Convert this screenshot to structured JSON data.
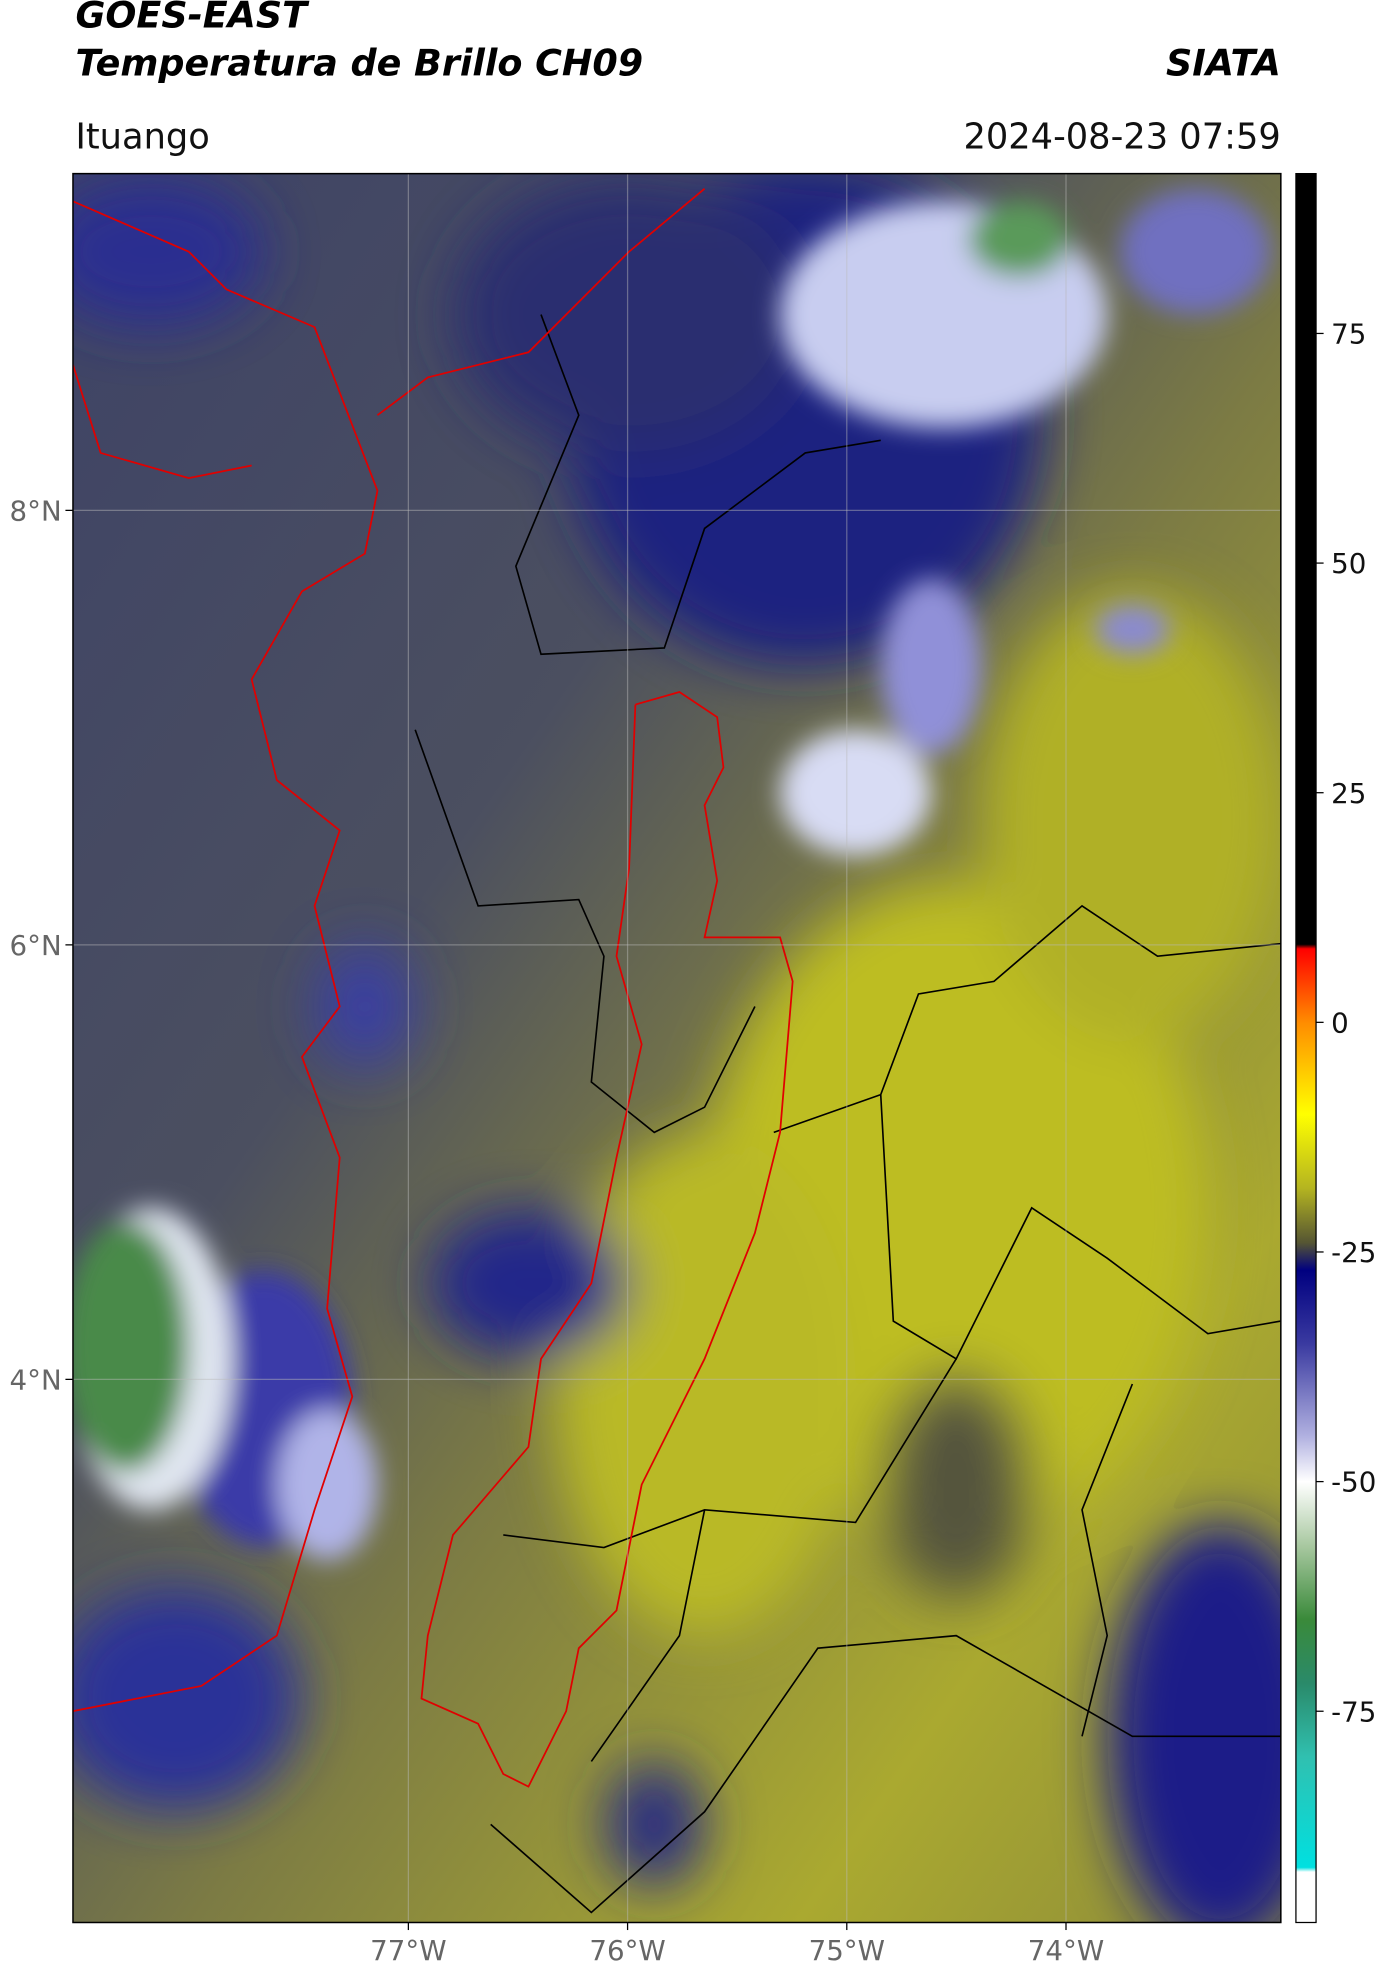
{
  "chart_data": {
    "type": "map",
    "title": "GOES-EAST",
    "subtitle": "Temperatura de Brillo CH09",
    "source": "SIATA",
    "region": "Ituango",
    "timestamp": "2024-08-23 07:59",
    "xlim": [
      -78.53,
      -73.02
    ],
    "ylim": [
      1.5,
      9.55
    ],
    "xticks": [
      {
        "value": -77,
        "label": "77°W"
      },
      {
        "value": -76,
        "label": "76°W"
      },
      {
        "value": -75,
        "label": "75°W"
      },
      {
        "value": -74,
        "label": "74°W"
      }
    ],
    "yticks": [
      {
        "value": 8,
        "label": "8°N"
      },
      {
        "value": 6,
        "label": "6°N"
      },
      {
        "value": 4,
        "label": "4°N"
      }
    ],
    "grid": true,
    "colorbar": {
      "clim": [
        -98,
        92.4
      ],
      "ticks": [
        75,
        50,
        25,
        0,
        -25,
        -50,
        -75
      ],
      "colormap": [
        {
          "value": 92.4,
          "color": "#000000"
        },
        {
          "value": 8.5,
          "color": "#000000"
        },
        {
          "value": 8,
          "color": "#ff0000"
        },
        {
          "value": 0,
          "color": "#ff8c00"
        },
        {
          "value": -10,
          "color": "#ffff00"
        },
        {
          "value": -18,
          "color": "#b5b520"
        },
        {
          "value": -24,
          "color": "#555533"
        },
        {
          "value": -27,
          "color": "#000080"
        },
        {
          "value": -35,
          "color": "#3a3aa0"
        },
        {
          "value": -45,
          "color": "#b0b0e0"
        },
        {
          "value": -50,
          "color": "#ffffff"
        },
        {
          "value": -57,
          "color": "#a8c8a0"
        },
        {
          "value": -65,
          "color": "#3a8a3a"
        },
        {
          "value": -72,
          "color": "#2a8a6a"
        },
        {
          "value": -80,
          "color": "#30c0b0"
        },
        {
          "value": -92,
          "color": "#00e0e0"
        },
        {
          "value": -92.5,
          "color": "#ffffff"
        },
        {
          "value": -98,
          "color": "#ffffff"
        }
      ]
    }
  }
}
